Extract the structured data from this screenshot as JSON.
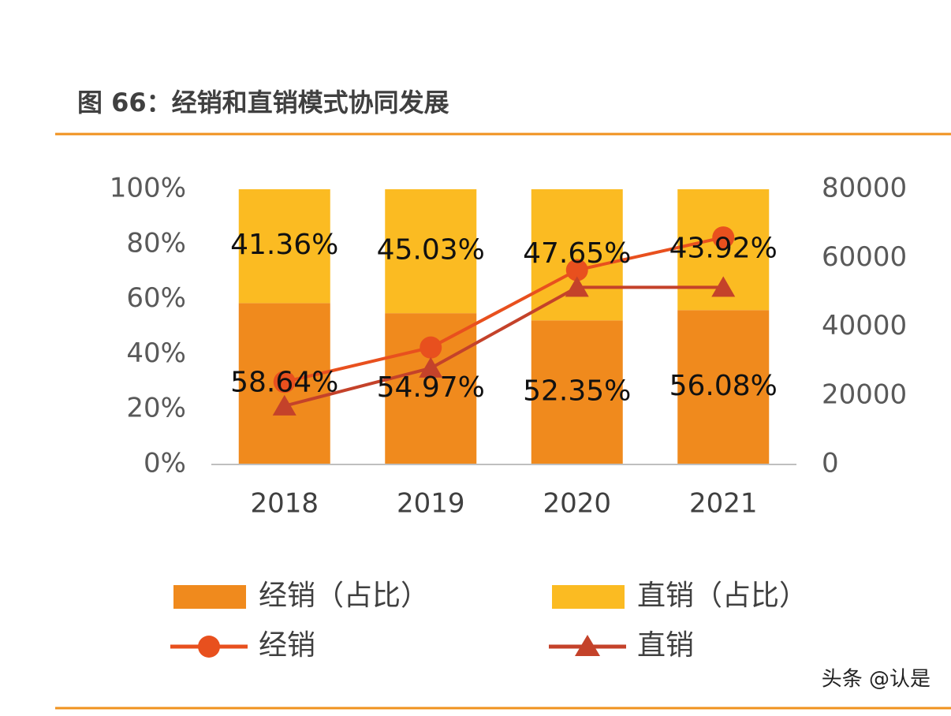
{
  "chart_data": {
    "type": "bar-line",
    "title": "图 66：经销和直销模式协同发展",
    "categories": [
      "2018",
      "2019",
      "2020",
      "2021"
    ],
    "series": [
      {
        "name": "经销（占比）",
        "type": "bar",
        "color": "#f08a1d",
        "values": [
          58.64,
          54.97,
          52.35,
          56.08
        ],
        "value_labels": [
          "58.64%",
          "54.97%",
          "52.35%",
          "56.08%"
        ]
      },
      {
        "name": "直销（占比）",
        "type": "bar",
        "color": "#fbbb22",
        "values": [
          41.36,
          45.03,
          47.65,
          43.92
        ],
        "value_labels": [
          "41.36%",
          "45.03%",
          "47.65%",
          "43.92%"
        ]
      },
      {
        "name": "经销",
        "type": "line",
        "axis": "y2",
        "marker": "circle",
        "color": "#e8501e",
        "values": [
          24000,
          34000,
          56500,
          66000
        ]
      },
      {
        "name": "直销",
        "type": "line",
        "axis": "y2",
        "marker": "triangle",
        "color": "#c4422a",
        "values": [
          17000,
          28000,
          51500,
          51500
        ]
      }
    ],
    "stacked": true,
    "ylim": [
      0,
      100
    ],
    "yticks": [
      {
        "value": 0,
        "label": "0%"
      },
      {
        "value": 20,
        "label": "20%"
      },
      {
        "value": 40,
        "label": "40%"
      },
      {
        "value": 60,
        "label": "60%"
      },
      {
        "value": 80,
        "label": "80%"
      },
      {
        "value": 100,
        "label": "100%"
      }
    ],
    "y2lim": [
      0,
      80000
    ],
    "y2ticks": [
      0,
      20000,
      40000,
      60000,
      80000
    ],
    "grid": false
  },
  "watermark": "头条 @认是"
}
